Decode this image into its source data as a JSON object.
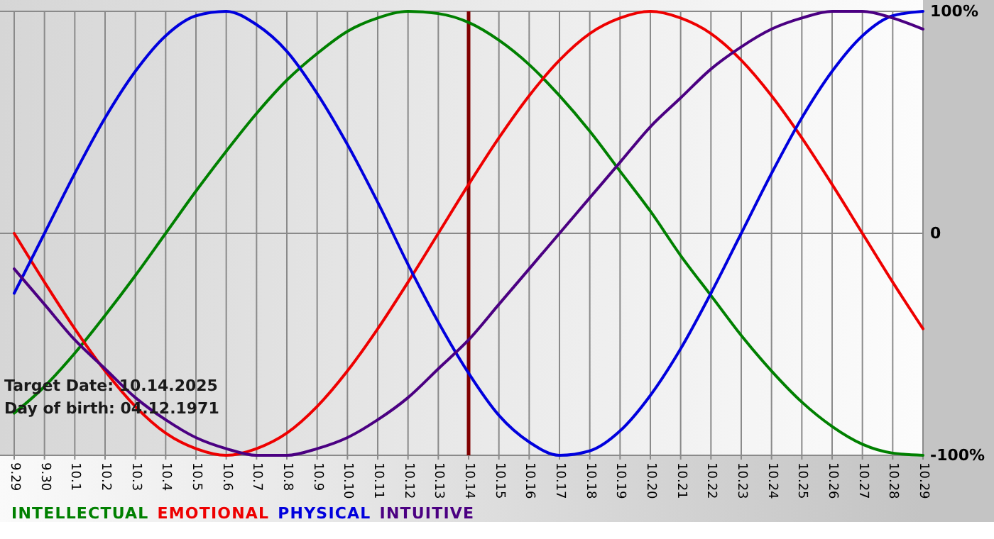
{
  "chart_data": {
    "type": "line",
    "categories": [
      "9.29",
      "9.30",
      "10.1",
      "10.2",
      "10.3",
      "10.4",
      "10.5",
      "10.6",
      "10.7",
      "10.8",
      "10.9",
      "10.10",
      "10.11",
      "10.12",
      "10.13",
      "10.14",
      "10.15",
      "10.16",
      "10.17",
      "10.18",
      "10.19",
      "10.20",
      "10.21",
      "10.22",
      "10.23",
      "10.24",
      "10.25",
      "10.26",
      "10.27",
      "10.28",
      "10.29"
    ],
    "series": [
      {
        "name": "INTELLECTUAL",
        "color": "#008000",
        "values": [
          -81,
          -69,
          -54,
          -37,
          -19,
          0,
          19,
          37,
          54,
          69,
          81,
          91,
          97,
          100,
          99,
          95,
          87,
          76,
          62,
          46,
          28,
          10,
          -10,
          -28,
          -46,
          -62,
          -76,
          -87,
          -95,
          -99,
          -100
        ]
      },
      {
        "name": "EMOTIONAL",
        "color": "#ee0000",
        "values": [
          0,
          -22,
          -43,
          -62,
          -78,
          -90,
          -97,
          -100,
          -97,
          -90,
          -78,
          -62,
          -43,
          -22,
          0,
          22,
          43,
          62,
          78,
          90,
          97,
          100,
          97,
          90,
          78,
          62,
          43,
          22,
          0,
          -22,
          -43
        ]
      },
      {
        "name": "PHYSICAL",
        "color": "#0000dd",
        "values": [
          -27,
          0,
          27,
          52,
          73,
          89,
          98,
          100,
          94,
          82,
          63,
          40,
          14,
          -14,
          -40,
          -63,
          -82,
          -94,
          -100,
          -98,
          -89,
          -73,
          -52,
          -27,
          0,
          27,
          52,
          73,
          89,
          98,
          100
        ]
      },
      {
        "name": "INTUITIVE",
        "color": "#4b0082",
        "values": [
          -16,
          -32,
          -48,
          -61,
          -74,
          -84,
          -92,
          -97,
          -100,
          -100,
          -97,
          -92,
          -84,
          -74,
          -61,
          -48,
          -32,
          -16,
          0,
          16,
          32,
          48,
          61,
          74,
          84,
          92,
          97,
          100,
          100,
          97,
          92
        ]
      }
    ],
    "ylim": [
      -100,
      100
    ],
    "yticks": [
      {
        "value": 100,
        "label": "100%"
      },
      0,
      {
        "value": -100,
        "label": "-100%"
      }
    ],
    "grid": true,
    "legend": "bottom left",
    "ref_lines": [
      {
        "axis": "x",
        "value": "10.14",
        "color": "#800000"
      }
    ],
    "annotations": [
      "Target Date: 10.14.2025",
      "Day of birth: 04.12.1971"
    ]
  }
}
